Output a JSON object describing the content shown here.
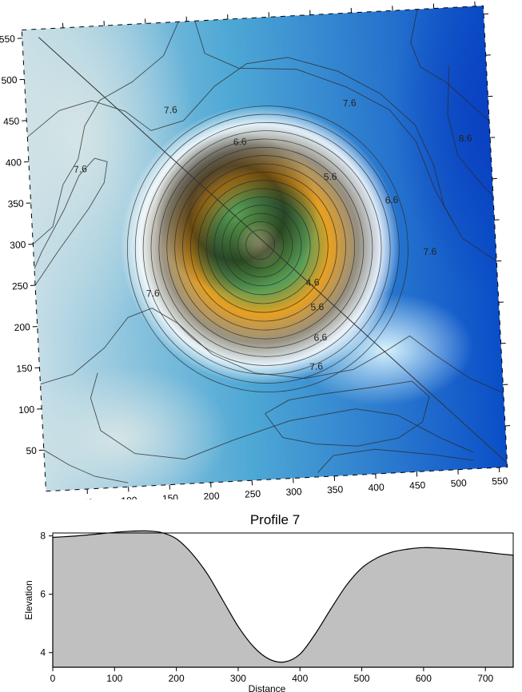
{
  "chart_data": [
    {
      "type": "contour",
      "description_kind": "contour-map",
      "x_ticks": [
        "50",
        "100",
        "150",
        "200",
        "250",
        "300",
        "350",
        "400",
        "450",
        "500",
        "550"
      ],
      "y_ticks": [
        "50",
        "100",
        "150",
        "200",
        "250",
        "300",
        "350",
        "400",
        "450",
        "500",
        "550"
      ],
      "xlim": [
        0,
        560
      ],
      "ylim": [
        0,
        560
      ],
      "rotation_deg": -3,
      "colors": {
        "low": "#e8e4a8",
        "green": "#5a9e4a",
        "gold": "#e8a020",
        "white": "#ffffff",
        "pale_blue": "#c4dde6",
        "mid_blue": "#3a9ed0",
        "deep_blue": "#0a4ec8"
      },
      "depression_center": [
        275,
        285
      ],
      "contour_labels": [
        {
          "text": "7.6",
          "x": 175,
          "y": 453
        },
        {
          "text": "7.6",
          "x": 392,
          "y": 450
        },
        {
          "text": "7.6",
          "x": 62,
          "y": 387
        },
        {
          "text": "8.6",
          "x": 530,
          "y": 400
        },
        {
          "text": "6.6",
          "x": 257,
          "y": 410
        },
        {
          "text": "5.6",
          "x": 364,
          "y": 362
        },
        {
          "text": "6.6",
          "x": 437,
          "y": 330
        },
        {
          "text": "7.6",
          "x": 480,
          "y": 265
        },
        {
          "text": "7.6",
          "x": 142,
          "y": 232
        },
        {
          "text": "4.6",
          "x": 336,
          "y": 235
        },
        {
          "text": "5.6",
          "x": 340,
          "y": 205
        },
        {
          "text": "6.6",
          "x": 342,
          "y": 168
        },
        {
          "text": "7.6",
          "x": 335,
          "y": 133
        }
      ],
      "profile_line": [
        [
          20,
          550
        ],
        [
          560,
          5
        ]
      ]
    },
    {
      "type": "area",
      "title": "Profile 7",
      "xlabel": "Distance",
      "ylabel": "Elevation",
      "xlim": [
        0,
        745
      ],
      "ylim": [
        3.5,
        8.1
      ],
      "x_ticks": [
        0,
        100,
        200,
        300,
        400,
        500,
        600,
        700
      ],
      "y_ticks": [
        4,
        6,
        8
      ],
      "fill": "#c0c0c0",
      "x": [
        0,
        25,
        50,
        75,
        100,
        125,
        150,
        175,
        200,
        225,
        250,
        275,
        300,
        325,
        350,
        375,
        400,
        425,
        450,
        475,
        500,
        525,
        550,
        575,
        600,
        625,
        650,
        675,
        700,
        725,
        745
      ],
      "y": [
        7.95,
        7.98,
        8.02,
        8.07,
        8.12,
        8.16,
        8.17,
        8.12,
        7.9,
        7.4,
        6.7,
        5.8,
        4.9,
        4.2,
        3.78,
        3.68,
        3.95,
        4.65,
        5.5,
        6.3,
        6.9,
        7.25,
        7.45,
        7.55,
        7.6,
        7.58,
        7.55,
        7.5,
        7.44,
        7.38,
        7.34
      ]
    }
  ]
}
